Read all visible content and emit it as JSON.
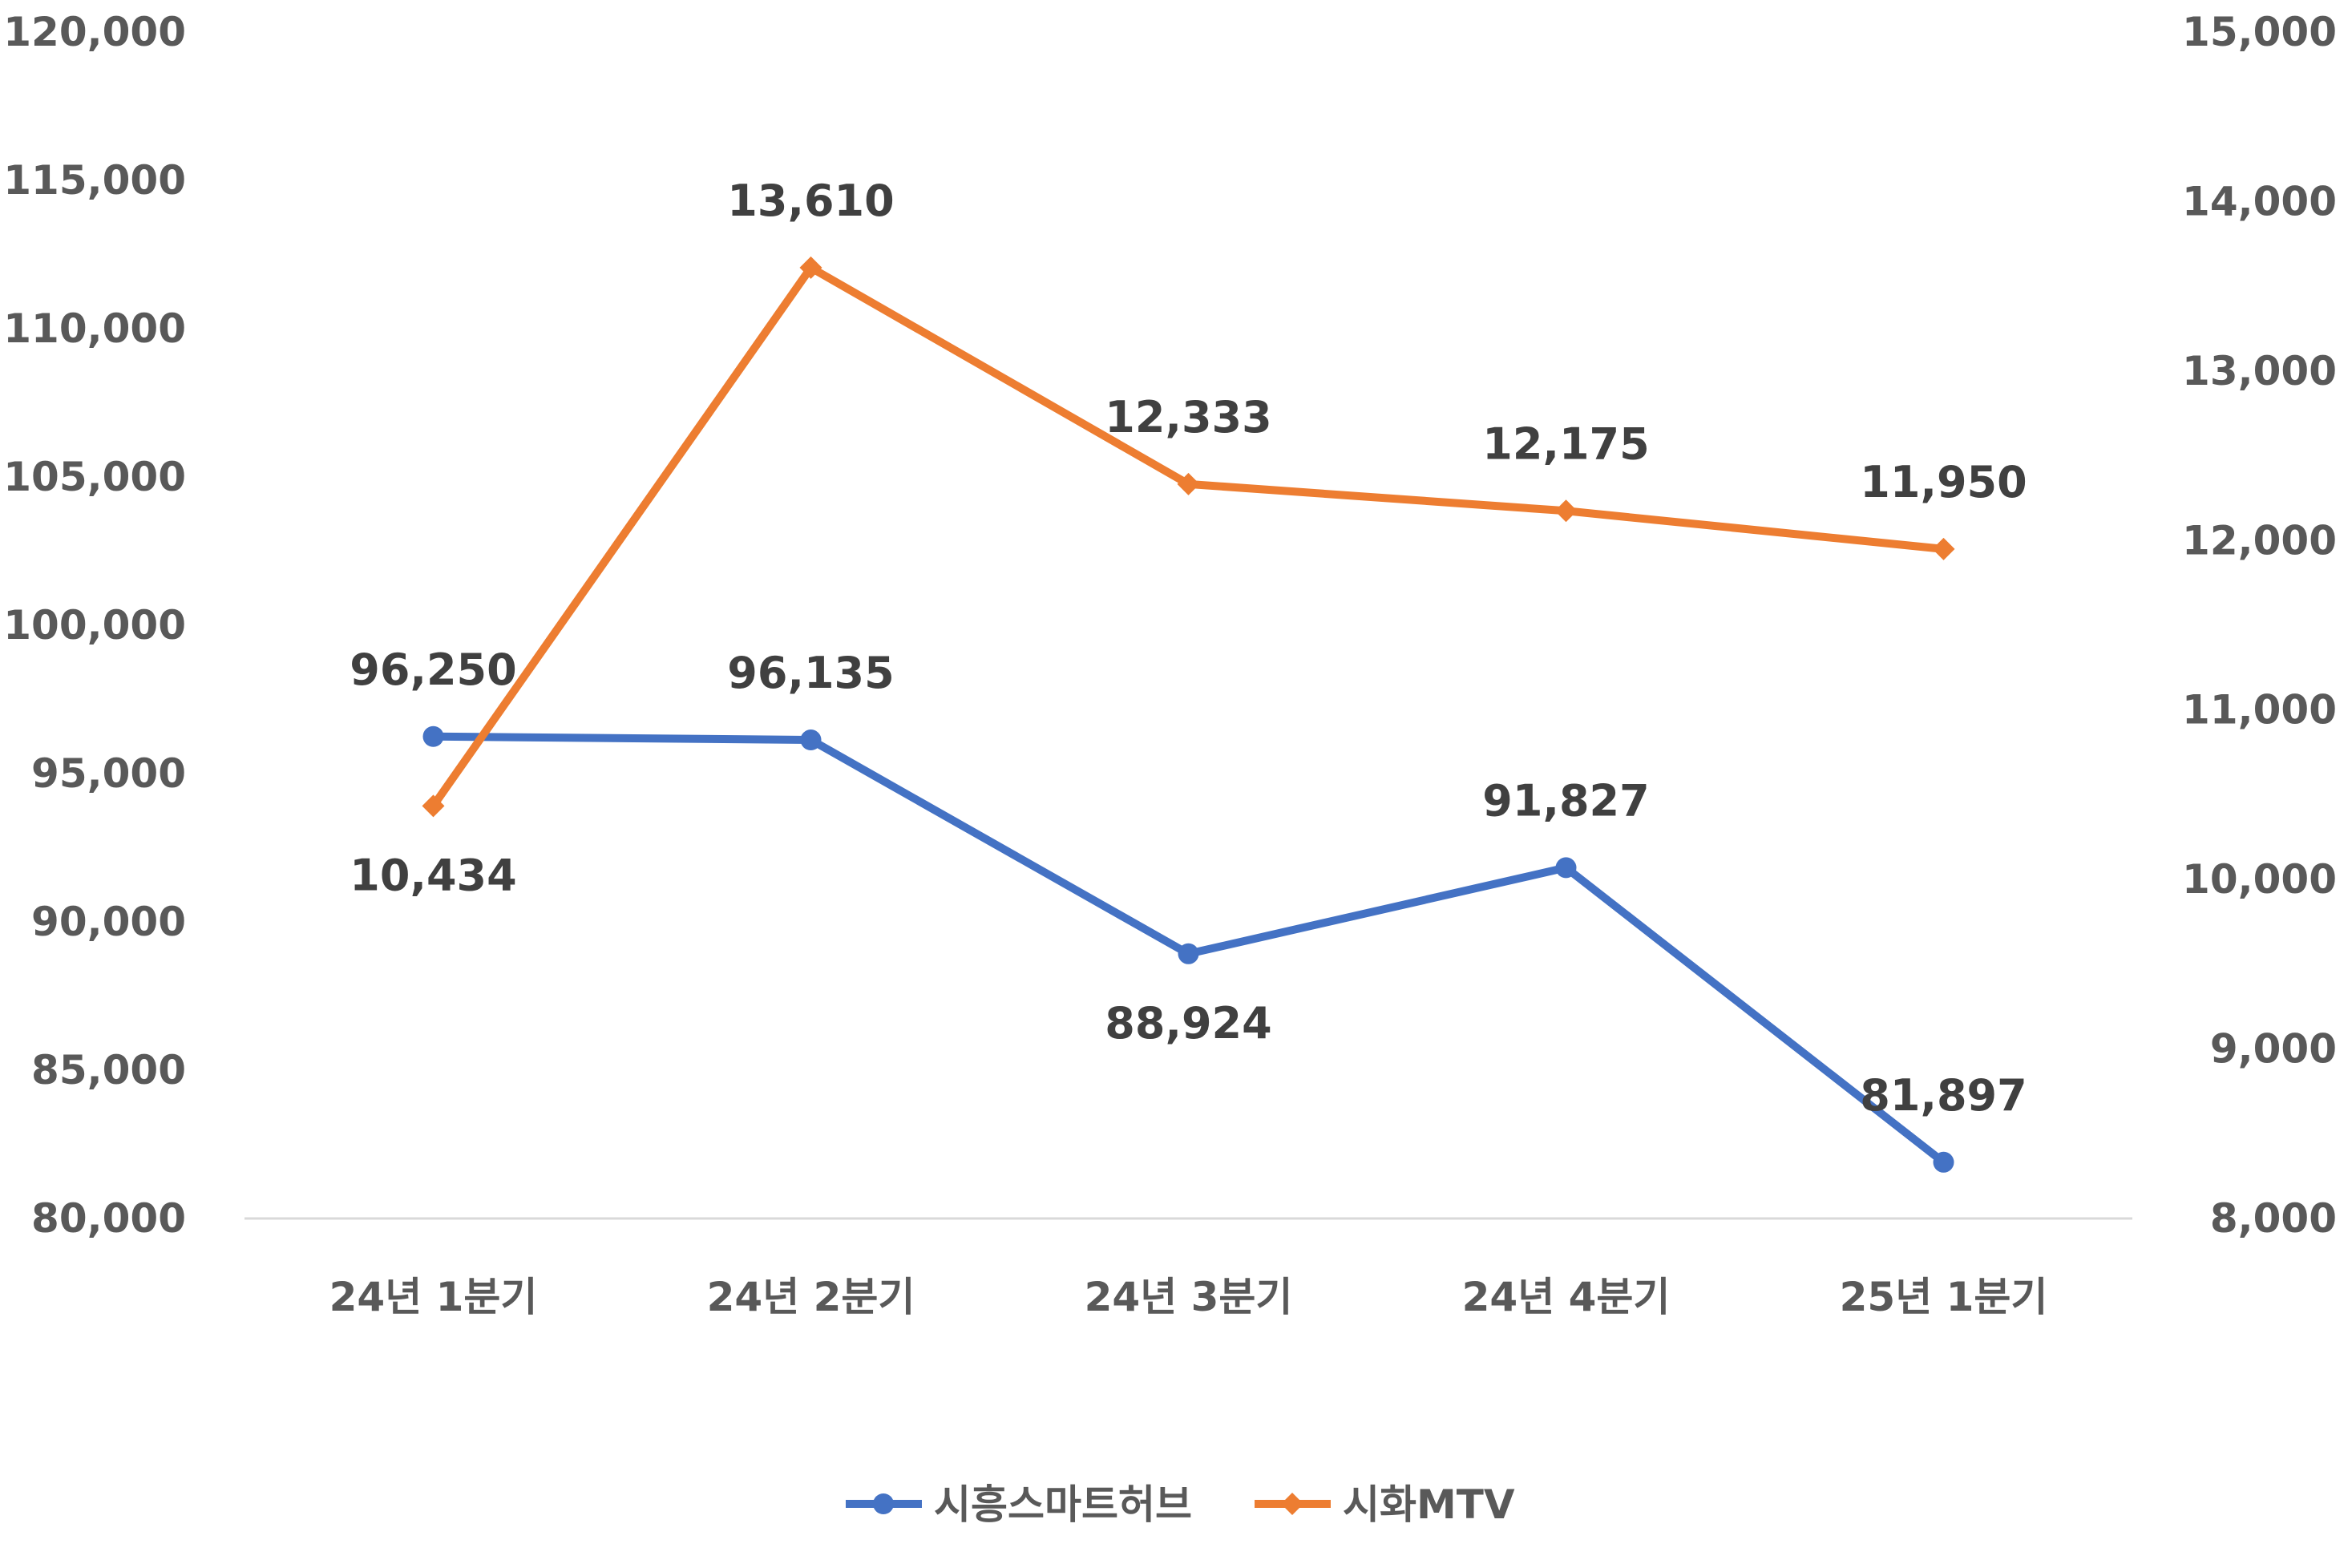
{
  "chart_data": {
    "type": "line",
    "categories": [
      "24년 1분기",
      "24년 2분기",
      "24년 3분기",
      "24년 4분기",
      "25년 1분기"
    ],
    "series": [
      {
        "name": "시흥스마트허브",
        "axis": "left",
        "color": "#4472C4",
        "marker": "circle",
        "values": [
          96250,
          96135,
          88924,
          91827,
          81897
        ],
        "labels": [
          "96,250",
          "96,135",
          "88,924",
          "91,827",
          "81,897"
        ],
        "label_position": [
          "above",
          "above",
          "below",
          "above",
          "above"
        ]
      },
      {
        "name": "시화MTV",
        "axis": "right",
        "color": "#ED7D31",
        "marker": "diamond",
        "values": [
          10434,
          13610,
          12333,
          12175,
          11950
        ],
        "labels": [
          "10,434",
          "13,610",
          "12,333",
          "12,175",
          "11,950"
        ],
        "label_position": [
          "below",
          "above",
          "above",
          "above",
          "above"
        ]
      }
    ],
    "y_left": {
      "ylim": [
        80000,
        120000
      ],
      "ticks": [
        "80,000",
        "85,000",
        "90,000",
        "95,000",
        "100,000",
        "105,000",
        "110,000",
        "115,000",
        "120,000"
      ]
    },
    "y_right": {
      "ylim": [
        8000,
        15000
      ],
      "ticks": [
        "8,000",
        "9,000",
        "10,000",
        "11,000",
        "12,000",
        "13,000",
        "14,000",
        "15,000"
      ]
    },
    "grid": false,
    "legend_position": "bottom"
  }
}
